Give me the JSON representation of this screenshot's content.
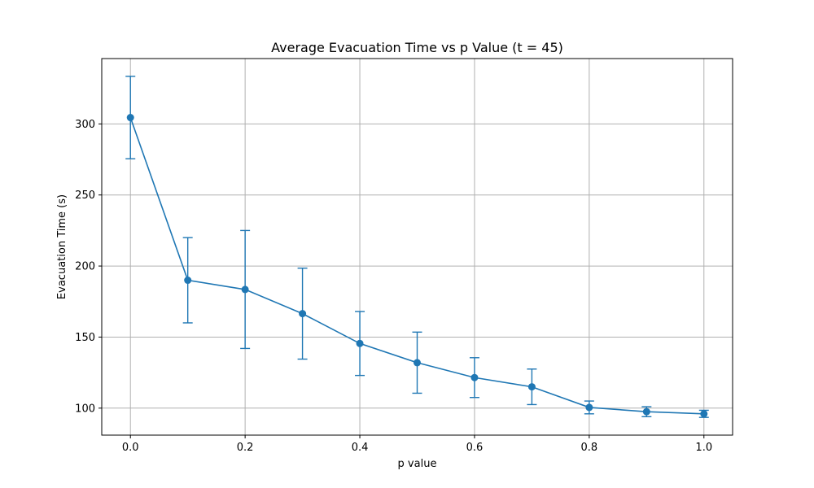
{
  "chart_data": {
    "type": "line",
    "title": "Average Evacuation Time vs p Value (t = 45)",
    "xlabel": "p value",
    "ylabel": "Evacuation Time (s)",
    "xlim": [
      -0.05,
      1.05
    ],
    "ylim": [
      81,
      346
    ],
    "xticks": [
      0.0,
      0.2,
      0.4,
      0.6,
      0.8,
      1.0
    ],
    "xtick_labels": [
      "0.0",
      "0.2",
      "0.4",
      "0.6",
      "0.8",
      "1.0"
    ],
    "yticks": [
      100,
      150,
      200,
      250,
      300
    ],
    "ytick_labels": [
      "100",
      "150",
      "200",
      "250",
      "300"
    ],
    "grid": true,
    "color": "#1f77b4",
    "series": [
      {
        "x": [
          0.0,
          0.1,
          0.2,
          0.3,
          0.4,
          0.5,
          0.6,
          0.7,
          0.8,
          0.9,
          1.0
        ],
        "values": [
          304.5,
          190.0,
          183.5,
          166.5,
          145.5,
          132.0,
          121.5,
          115.0,
          100.5,
          97.5,
          96.0
        ],
        "error": [
          29.0,
          30.0,
          41.5,
          32.0,
          22.5,
          21.5,
          14.0,
          12.5,
          4.5,
          3.5,
          2.5
        ]
      }
    ]
  }
}
